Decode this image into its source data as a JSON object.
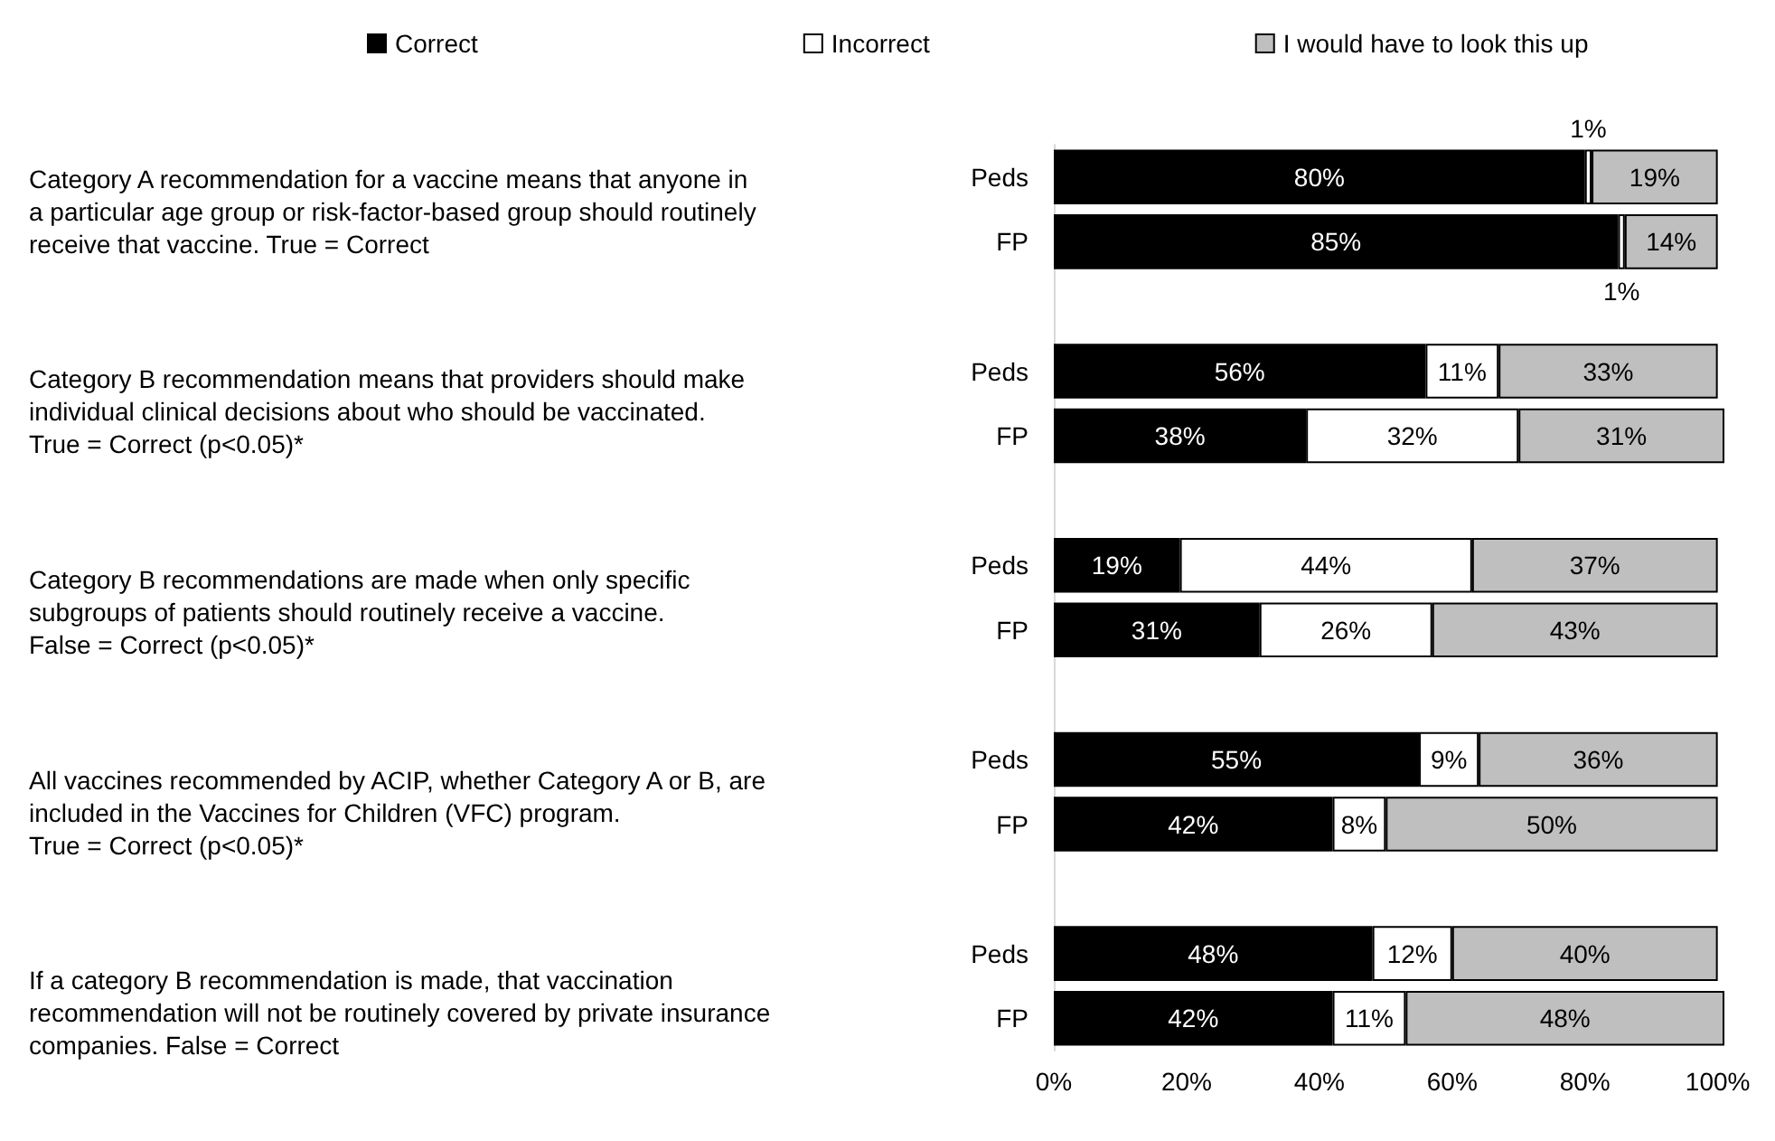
{
  "chart_data": {
    "type": "bar",
    "orientation": "horizontal",
    "stacked": true,
    "categories": [
      "Peds",
      "FP",
      null,
      "Peds",
      "FP",
      null,
      "Peds",
      "FP",
      null,
      "Peds",
      "FP",
      null,
      "Peds",
      "FP"
    ],
    "series": [
      {
        "name": "Correct",
        "color": "#000000",
        "values": [
          80,
          85,
          null,
          56,
          38,
          null,
          19,
          31,
          null,
          55,
          42,
          null,
          48,
          42
        ],
        "value_labels": [
          "80%",
          "85%",
          null,
          "56%",
          "38%",
          null,
          "19%",
          "31%",
          null,
          "55%",
          "42%",
          null,
          "48%",
          "42%"
        ]
      },
      {
        "name": "Incorrect",
        "color": "#ffffff",
        "values": [
          1,
          1,
          null,
          11,
          32,
          null,
          44,
          26,
          null,
          9,
          8,
          null,
          12,
          11
        ],
        "value_labels": [
          "1%",
          "1%",
          null,
          "11%",
          "32%",
          null,
          "44%",
          "26%",
          null,
          "9%",
          "8%",
          null,
          "12%",
          "11%"
        ]
      },
      {
        "name": "I would have to look this up",
        "color": "#bfbfbf",
        "values": [
          19,
          14,
          null,
          33,
          31,
          null,
          37,
          43,
          null,
          36,
          50,
          null,
          40,
          48
        ],
        "value_labels": [
          "19%",
          "14%",
          null,
          "33%",
          "31%",
          null,
          "37%",
          "43%",
          null,
          "36%",
          "50%",
          null,
          "40%",
          "48%"
        ]
      }
    ],
    "xlim": [
      0,
      101
    ],
    "xticks": [
      {
        "value": 0,
        "label": "0%"
      },
      {
        "value": 20,
        "label": "20%"
      },
      {
        "value": 40,
        "label": "40%"
      },
      {
        "value": 60,
        "label": "60%"
      },
      {
        "value": 80,
        "label": "80%"
      },
      {
        "value": 100,
        "label": "100%"
      }
    ],
    "grid": false,
    "legend": "top",
    "annotations": [
      "Category A recommendation for a vaccine means that anyone in\na particular age group or risk-factor-based group should routinely\nreceive that vaccine. True = Correct",
      "Category B recommendation means that providers should make\nindividual clinical decisions about who should be vaccinated.\nTrue = Correct (p<0.05)*",
      "Category B recommendations are made when only specific\nsubgroups of patients should routinely receive a vaccine.\nFalse = Correct (p<0.05)*",
      "All vaccines recommended by ACIP, whether Category A or B, are\nincluded in the Vaccines for Children (VFC) program.\nTrue = Correct (p<0.05)*",
      "If a category B recommendation is made, that vaccination\nrecommendation will not be routinely covered by private insurance\ncompanies. False = Correct"
    ]
  }
}
